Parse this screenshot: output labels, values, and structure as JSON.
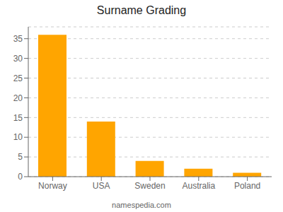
{
  "chart_data": {
    "type": "bar",
    "title": "Surname Grading",
    "categories": [
      "Norway",
      "USA",
      "Sweden",
      "Australia",
      "Poland"
    ],
    "values": [
      36,
      14,
      4,
      2,
      1
    ],
    "color": "#FFA500",
    "ylim": [
      0,
      38
    ],
    "yticks": [
      0,
      5,
      10,
      15,
      20,
      25,
      30,
      35
    ],
    "grid": true,
    "annotations": [
      "namespedia.com"
    ]
  }
}
